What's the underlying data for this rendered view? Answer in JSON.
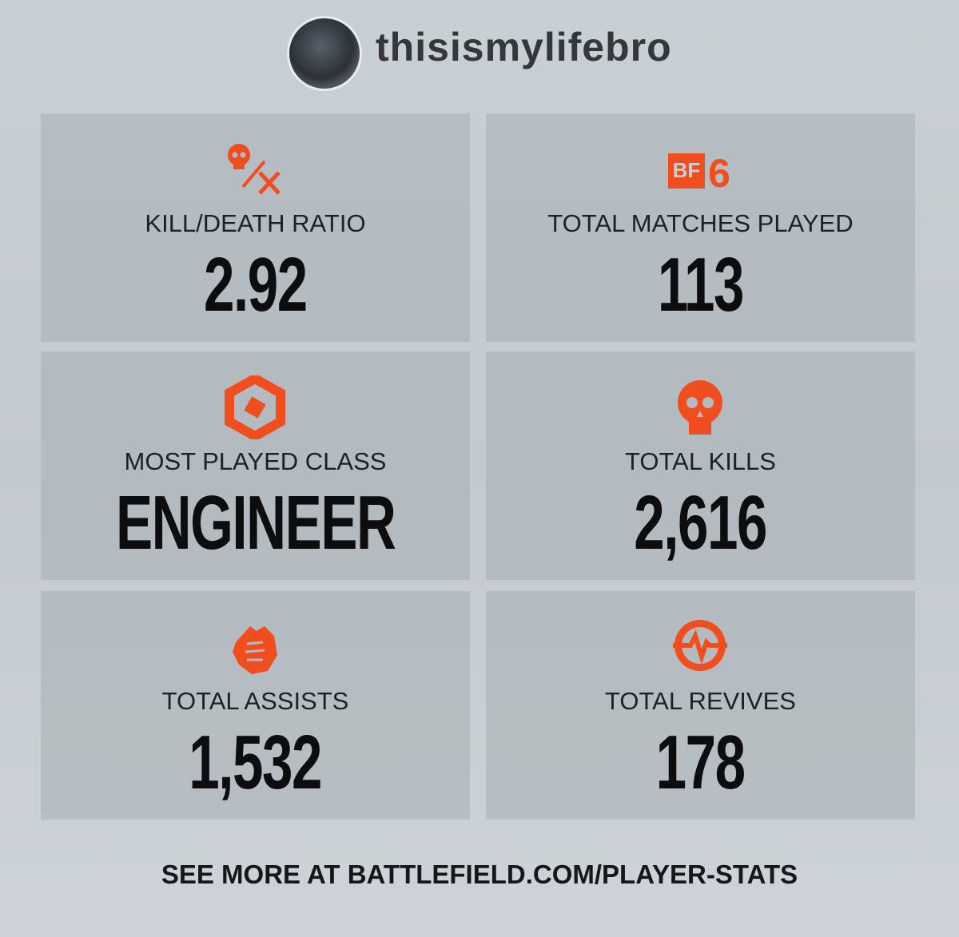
{
  "header": {
    "username": "thisismylifebro"
  },
  "stats": [
    {
      "label": "KILL/DEATH RATIO",
      "value": "2.92"
    },
    {
      "label": "TOTAL MATCHES PLAYED",
      "value": "113",
      "badge": "BF",
      "badge_number": "6"
    },
    {
      "label": "MOST PLAYED CLASS",
      "value": "ENGINEER"
    },
    {
      "label": "TOTAL KILLS",
      "value": "2,616"
    },
    {
      "label": "TOTAL ASSISTS",
      "value": "1,532"
    },
    {
      "label": "TOTAL REVIVES",
      "value": "178"
    }
  ],
  "footer": {
    "text": "SEE MORE AT BATTLEFIELD.COM/PLAYER-STATS"
  }
}
